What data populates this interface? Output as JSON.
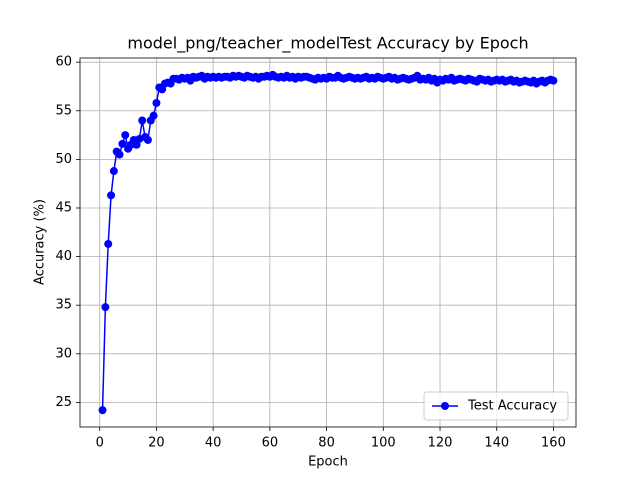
{
  "chart_data": {
    "type": "line",
    "title": "model_png/teacher_modelTest Accuracy by Epoch",
    "x_label": "Epoch",
    "y_label": "Accuracy (%)",
    "x": [
      1,
      2,
      3,
      4,
      5,
      6,
      7,
      8,
      9,
      10,
      11,
      12,
      13,
      14,
      15,
      16,
      17,
      18,
      19,
      20,
      21,
      22,
      23,
      24,
      25,
      26,
      27,
      28,
      29,
      30,
      31,
      32,
      33,
      34,
      35,
      36,
      37,
      38,
      39,
      40,
      41,
      42,
      43,
      44,
      45,
      46,
      47,
      48,
      49,
      50,
      51,
      52,
      53,
      54,
      55,
      56,
      57,
      58,
      59,
      60,
      61,
      62,
      63,
      64,
      65,
      66,
      67,
      68,
      69,
      70,
      71,
      72,
      73,
      74,
      75,
      76,
      77,
      78,
      79,
      80,
      81,
      82,
      83,
      84,
      85,
      86,
      87,
      88,
      89,
      90,
      91,
      92,
      93,
      94,
      95,
      96,
      97,
      98,
      99,
      100,
      101,
      102,
      103,
      104,
      105,
      106,
      107,
      108,
      109,
      110,
      111,
      112,
      113,
      114,
      115,
      116,
      117,
      118,
      119,
      120,
      121,
      122,
      123,
      124,
      125,
      126,
      127,
      128,
      129,
      130,
      131,
      132,
      133,
      134,
      135,
      136,
      137,
      138,
      139,
      140,
      141,
      142,
      143,
      144,
      145,
      146,
      147,
      148,
      149,
      150,
      151,
      152,
      153,
      154,
      155,
      156,
      157,
      158,
      159,
      160
    ],
    "series": [
      {
        "name": "Test Accuracy",
        "color": "#0000ff",
        "values": [
          24.2,
          34.8,
          41.3,
          46.3,
          48.8,
          50.8,
          50.5,
          51.6,
          52.5,
          51.1,
          51.5,
          52.0,
          51.5,
          52.1,
          54.0,
          52.3,
          52.0,
          54.0,
          54.5,
          55.8,
          57.4,
          57.2,
          57.8,
          57.9,
          57.8,
          58.3,
          58.3,
          58.2,
          58.4,
          58.3,
          58.4,
          58.1,
          58.5,
          58.4,
          58.5,
          58.6,
          58.3,
          58.5,
          58.4,
          58.5,
          58.4,
          58.5,
          58.4,
          58.5,
          58.5,
          58.4,
          58.6,
          58.5,
          58.6,
          58.5,
          58.4,
          58.6,
          58.5,
          58.4,
          58.5,
          58.3,
          58.5,
          58.5,
          58.6,
          58.5,
          58.7,
          58.5,
          58.4,
          58.5,
          58.4,
          58.6,
          58.4,
          58.5,
          58.3,
          58.5,
          58.4,
          58.5,
          58.5,
          58.4,
          58.3,
          58.2,
          58.4,
          58.3,
          58.4,
          58.3,
          58.5,
          58.4,
          58.4,
          58.6,
          58.4,
          58.3,
          58.4,
          58.5,
          58.4,
          58.3,
          58.4,
          58.3,
          58.4,
          58.5,
          58.3,
          58.4,
          58.3,
          58.5,
          58.4,
          58.3,
          58.4,
          58.5,
          58.3,
          58.4,
          58.2,
          58.3,
          58.4,
          58.3,
          58.2,
          58.3,
          58.4,
          58.6,
          58.2,
          58.3,
          58.2,
          58.4,
          58.1,
          58.3,
          57.9,
          58.2,
          58.1,
          58.3,
          58.2,
          58.4,
          58.1,
          58.2,
          58.3,
          58.2,
          58.1,
          58.3,
          58.2,
          58.1,
          58.0,
          58.3,
          58.2,
          58.1,
          58.2,
          58.0,
          58.1,
          58.2,
          58.1,
          58.2,
          58.0,
          58.1,
          58.2,
          58.0,
          58.1,
          57.9,
          58.0,
          58.1,
          58.0,
          57.9,
          58.1,
          57.8,
          58.0,
          58.1,
          57.9,
          58.1,
          58.2,
          58.1
        ]
      }
    ],
    "xlim": [
      -6.95,
      167.95
    ],
    "xticks": [
      0,
      20,
      40,
      60,
      80,
      100,
      120,
      140,
      160
    ],
    "ylim": [
      22.47,
      60.43
    ],
    "yticks": [
      25,
      30,
      35,
      40,
      45,
      50,
      55,
      60
    ],
    "grid": true,
    "legend": "lower right"
  }
}
